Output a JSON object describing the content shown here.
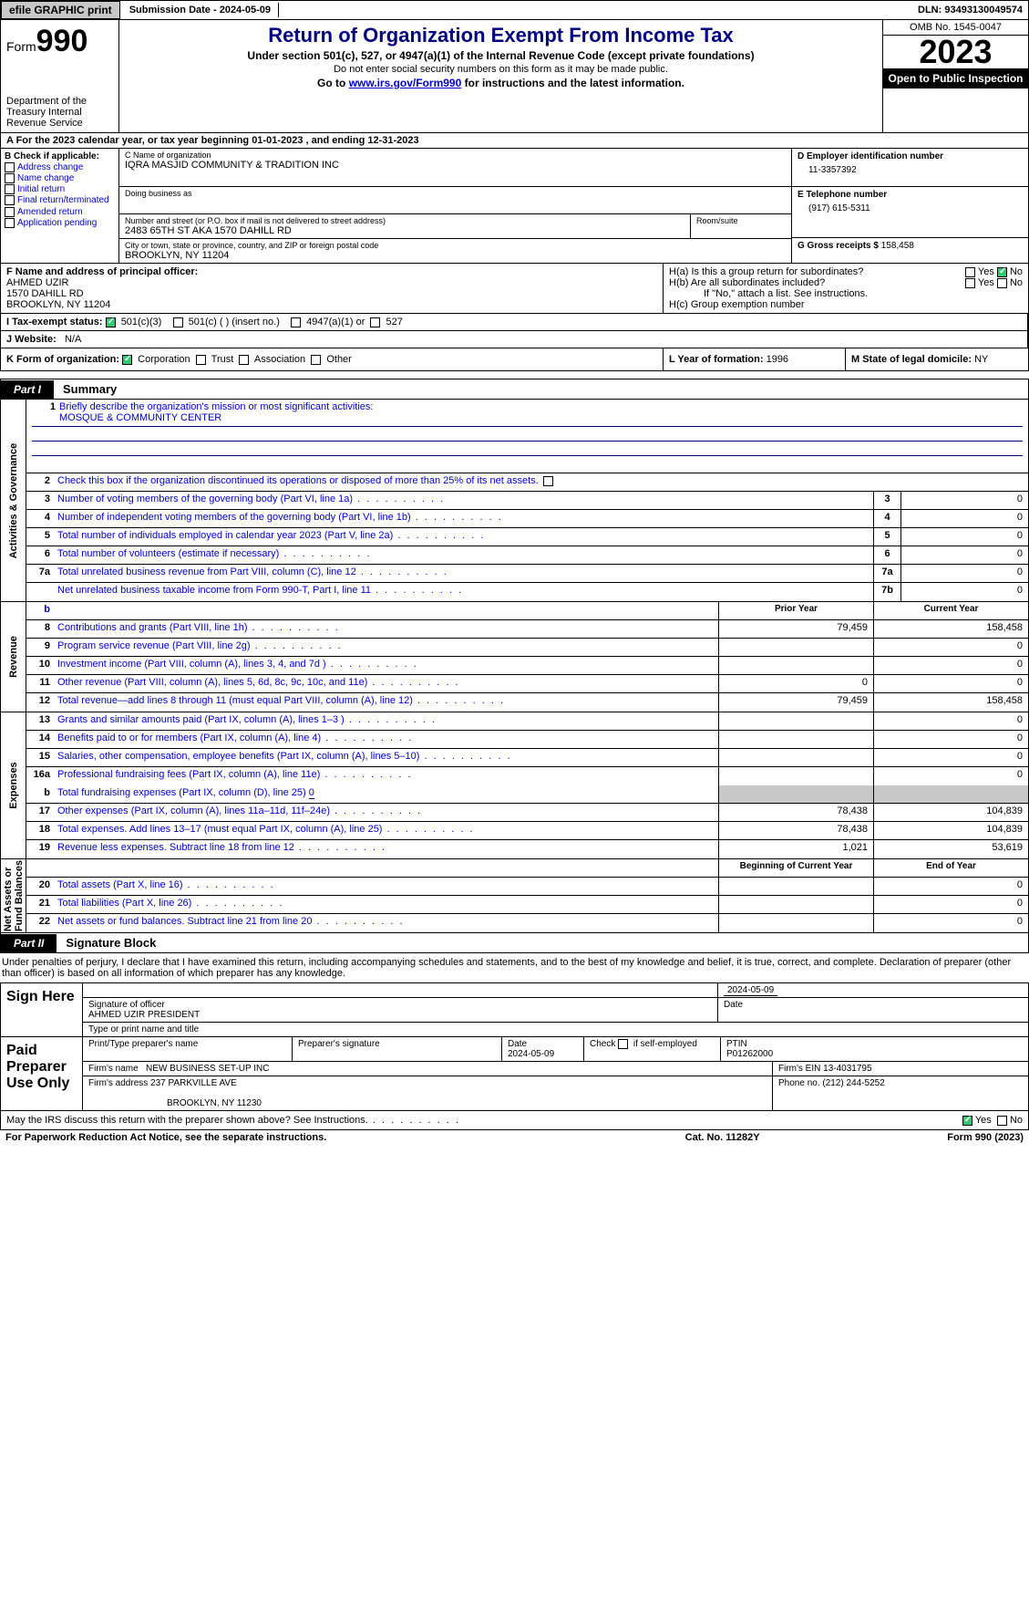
{
  "topbar": {
    "efile": "efile GRAPHIC print",
    "submission": "Submission Date - 2024-05-09",
    "dln": "DLN: 93493130049574"
  },
  "header": {
    "form_label": "Form",
    "form_num": "990",
    "dept": "Department of the Treasury Internal Revenue Service",
    "title": "Return of Organization Exempt From Income Tax",
    "sub1": "Under section 501(c), 527, or 4947(a)(1) of the Internal Revenue Code (except private foundations)",
    "sub2": "Do not enter social security numbers on this form as it may be made public.",
    "sub3_pre": "Go to ",
    "sub3_link": "www.irs.gov/Form990",
    "sub3_post": " for instructions and the latest information.",
    "omb": "OMB No. 1545-0047",
    "year": "2023",
    "open": "Open to Public Inspection"
  },
  "period": "A For the 2023 calendar year, or tax year beginning 01-01-2023    , and ending 12-31-2023",
  "B": {
    "hdr": "B Check if applicable:",
    "opts": [
      "Address change",
      "Name change",
      "Initial return",
      "Final return/terminated",
      "Amended return",
      "Application pending"
    ]
  },
  "C": {
    "name_lbl": "C Name of organization",
    "name": "IQRA MASJID COMMUNITY & TRADITION INC",
    "dba_lbl": "Doing business as",
    "dba": "",
    "addr_lbl": "Number and street (or P.O. box if mail is not delivered to street address)",
    "room_lbl": "Room/suite",
    "addr": "2483 65TH ST AKA 1570 DAHILL RD",
    "city_lbl": "City or town, state or province, country, and ZIP or foreign postal code",
    "city": "BROOKLYN, NY  11204"
  },
  "D": {
    "lbl": "D Employer identification number",
    "val": "11-3357392"
  },
  "E": {
    "lbl": "E Telephone number",
    "val": "(917) 615-5311"
  },
  "G": {
    "lbl": "G Gross receipts $",
    "val": "158,458"
  },
  "F": {
    "lbl": "F  Name and address of principal officer:",
    "name": "AHMED UZIR",
    "addr1": "1570 DAHILL RD",
    "addr2": "BROOKLYN, NY  11204"
  },
  "H": {
    "a": "H(a)  Is this a group return for subordinates?",
    "b": "H(b)  Are all subordinates included?",
    "b2": "If \"No,\" attach a list. See instructions.",
    "c": "H(c)  Group exemption number"
  },
  "I": {
    "lbl": "I    Tax-exempt status:",
    "o1": "501(c)(3)",
    "o2": "501(c) (  ) (insert no.)",
    "o3": "4947(a)(1) or",
    "o4": "527"
  },
  "J": {
    "lbl": "J   Website:",
    "val": "N/A"
  },
  "K": {
    "lbl": "K Form of organization:",
    "o1": "Corporation",
    "o2": "Trust",
    "o3": "Association",
    "o4": "Other"
  },
  "L": {
    "lbl": "L Year of formation:",
    "val": "1996"
  },
  "M": {
    "lbl": "M State of legal domicile:",
    "val": "NY"
  },
  "part1": {
    "tab": "Part I",
    "title": "Summary"
  },
  "mission": {
    "q": "Briefly describe the organization's mission or most significant activities:",
    "val": "MOSQUE & COMMUNITY CENTER"
  },
  "s2": "Check this box      if the organization discontinued its operations or disposed of more than 25% of its net assets.",
  "gov_rows": [
    {
      "n": "3",
      "d": "Number of voting members of the governing body (Part VI, line 1a)",
      "b": "3",
      "v": "0"
    },
    {
      "n": "4",
      "d": "Number of independent voting members of the governing body (Part VI, line 1b)",
      "b": "4",
      "v": "0"
    },
    {
      "n": "5",
      "d": "Total number of individuals employed in calendar year 2023 (Part V, line 2a)",
      "b": "5",
      "v": "0"
    },
    {
      "n": "6",
      "d": "Total number of volunteers (estimate if necessary)",
      "b": "6",
      "v": "0"
    },
    {
      "n": "7a",
      "d": "Total unrelated business revenue from Part VIII, column (C), line 12",
      "b": "7a",
      "v": "0"
    },
    {
      "n": "",
      "d": "Net unrelated business taxable income from Form 990-T, Part I, line 11",
      "b": "7b",
      "v": "0"
    }
  ],
  "rev_hdr": {
    "b": "b",
    "py": "Prior Year",
    "cy": "Current Year"
  },
  "rev_rows": [
    {
      "n": "8",
      "d": "Contributions and grants (Part VIII, line 1h)",
      "py": "79,459",
      "cy": "158,458"
    },
    {
      "n": "9",
      "d": "Program service revenue (Part VIII, line 2g)",
      "py": "",
      "cy": "0"
    },
    {
      "n": "10",
      "d": "Investment income (Part VIII, column (A), lines 3, 4, and 7d )",
      "py": "",
      "cy": "0"
    },
    {
      "n": "11",
      "d": "Other revenue (Part VIII, column (A), lines 5, 6d, 8c, 9c, 10c, and 11e)",
      "py": "0",
      "cy": "0"
    },
    {
      "n": "12",
      "d": "Total revenue—add lines 8 through 11 (must equal Part VIII, column (A), line 12)",
      "py": "79,459",
      "cy": "158,458"
    }
  ],
  "exp_rows": [
    {
      "n": "13",
      "d": "Grants and similar amounts paid (Part IX, column (A), lines 1–3 )",
      "py": "",
      "cy": "0"
    },
    {
      "n": "14",
      "d": "Benefits paid to or for members (Part IX, column (A), line 4)",
      "py": "",
      "cy": "0"
    },
    {
      "n": "15",
      "d": "Salaries, other compensation, employee benefits (Part IX, column (A), lines 5–10)",
      "py": "",
      "cy": "0"
    },
    {
      "n": "16a",
      "d": "Professional fundraising fees (Part IX, column (A), line 11e)",
      "py": "",
      "cy": "0"
    }
  ],
  "exp_b": {
    "n": "b",
    "d": "Total fundraising expenses (Part IX, column (D), line 25)",
    "v": "0"
  },
  "exp_rows2": [
    {
      "n": "17",
      "d": "Other expenses (Part IX, column (A), lines 11a–11d, 11f–24e)",
      "py": "78,438",
      "cy": "104,839"
    },
    {
      "n": "18",
      "d": "Total expenses. Add lines 13–17 (must equal Part IX, column (A), line 25)",
      "py": "78,438",
      "cy": "104,839"
    },
    {
      "n": "19",
      "d": "Revenue less expenses. Subtract line 18 from line 12",
      "py": "1,021",
      "cy": "53,619"
    }
  ],
  "na_hdr": {
    "py": "Beginning of Current Year",
    "cy": "End of Year"
  },
  "na_rows": [
    {
      "n": "20",
      "d": "Total assets (Part X, line 16)",
      "py": "",
      "cy": "0"
    },
    {
      "n": "21",
      "d": "Total liabilities (Part X, line 26)",
      "py": "",
      "cy": "0"
    },
    {
      "n": "22",
      "d": "Net assets or fund balances. Subtract line 21 from line 20",
      "py": "",
      "cy": "0"
    }
  ],
  "part2": {
    "tab": "Part II",
    "title": "Signature Block"
  },
  "sig_intro": "Under penalties of perjury, I declare that I have examined this return, including accompanying schedules and statements, and to the best of my knowledge and belief, it is true, correct, and complete. Declaration of preparer (other than officer) is based on all information of which preparer has any knowledge.",
  "sign": {
    "left": "Sign Here",
    "date": "2024-05-09",
    "sig_lbl": "Signature of officer",
    "officer": "AHMED UZIR  PRESIDENT",
    "type_lbl": "Type or print name and title",
    "date_lbl": "Date"
  },
  "prep": {
    "left": "Paid Preparer Use Only",
    "c1": "Print/Type preparer's name",
    "c2": "Preparer's signature",
    "c3_lbl": "Date",
    "c3": "2024-05-09",
    "c4": "Check        if self-employed",
    "c5_lbl": "PTIN",
    "c5": "P01262000",
    "firm_lbl": "Firm's name",
    "firm": "NEW BUSINESS SET-UP INC",
    "ein_lbl": "Firm's EIN",
    "ein": "13-4031795",
    "addr_lbl": "Firm's address",
    "addr": "237 PARKVILLE AVE",
    "addr2": "BROOKLYN, NY  11230",
    "phone_lbl": "Phone no.",
    "phone": "(212) 244-5252"
  },
  "discuss": "May the IRS discuss this return with the preparer shown above? See Instructions.",
  "footer": {
    "l": "For Paperwork Reduction Act Notice, see the separate instructions.",
    "c": "Cat. No. 11282Y",
    "r": "Form 990 (2023)"
  },
  "labels": {
    "yes": "Yes",
    "no": "No"
  }
}
